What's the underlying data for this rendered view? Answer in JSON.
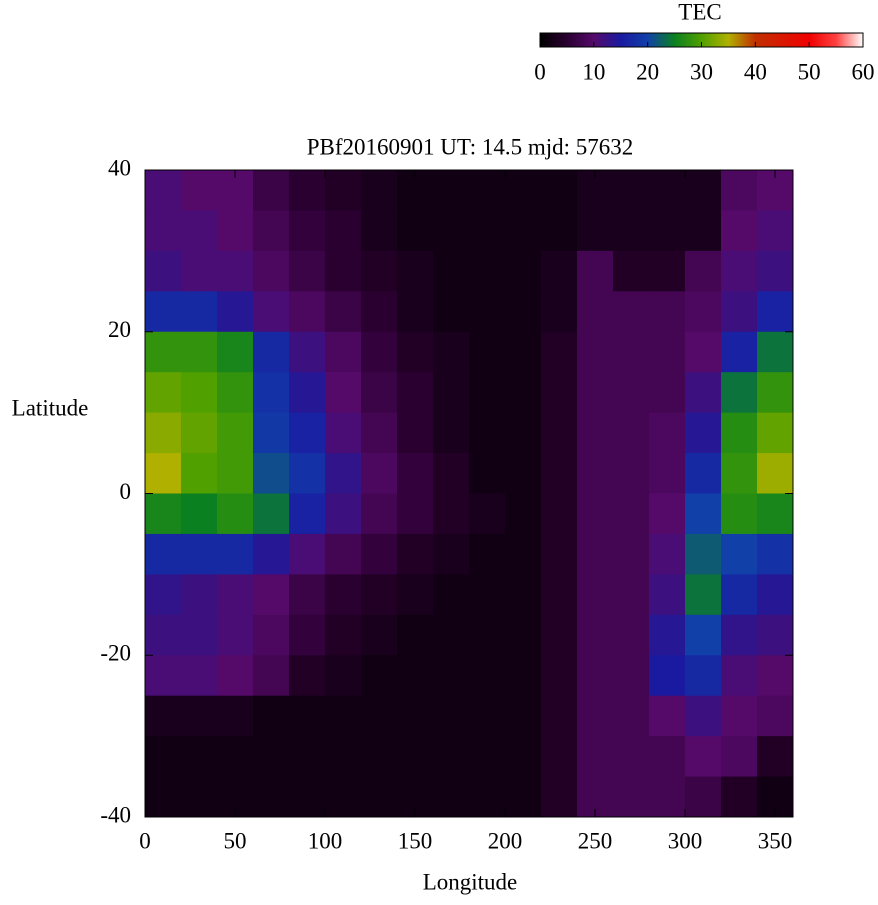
{
  "chart_data": {
    "type": "heatmap",
    "title": "PBf20160901  UT: 14.5  mjd: 57632",
    "xlabel": "Longitude",
    "ylabel": "Latitude",
    "colorbar_label": "TEC",
    "x": [
      10,
      30,
      50,
      70,
      90,
      110,
      130,
      150,
      170,
      190,
      210,
      230,
      250,
      270,
      290,
      310,
      330,
      350
    ],
    "y": [
      37.5,
      32.5,
      27.5,
      22.5,
      17.5,
      12.5,
      7.5,
      2.5,
      -2.5,
      -7.5,
      -12.5,
      -17.5,
      -22.5,
      -27.5,
      -32.5,
      -37.5
    ],
    "values": [
      [
        11,
        10,
        10,
        7,
        5,
        4,
        3,
        2,
        2,
        2,
        2,
        2,
        3,
        3,
        3,
        3,
        9,
        10
      ],
      [
        11,
        11,
        10,
        8,
        6,
        5,
        3,
        2,
        2,
        2,
        2,
        2,
        3,
        3,
        3,
        3,
        10,
        11
      ],
      [
        12,
        11,
        11,
        9,
        7,
        5,
        4,
        3,
        2,
        2,
        2,
        3,
        8,
        4,
        4,
        8,
        11,
        12
      ],
      [
        17,
        17,
        14,
        11,
        9,
        7,
        5,
        3,
        2,
        2,
        2,
        3,
        8,
        8,
        8,
        9,
        12,
        16
      ],
      [
        28,
        28,
        26,
        17,
        12,
        9,
        6,
        4,
        3,
        2,
        2,
        4,
        8,
        8,
        8,
        10,
        16,
        24
      ],
      [
        31,
        30,
        28,
        18,
        14,
        10,
        7,
        5,
        3,
        2,
        2,
        4,
        8,
        8,
        8,
        12,
        24,
        28
      ],
      [
        33,
        31,
        29,
        19,
        16,
        11,
        8,
        5,
        3,
        2,
        2,
        4,
        8,
        8,
        9,
        14,
        27,
        31
      ],
      [
        35,
        30,
        29,
        21,
        18,
        13,
        9,
        6,
        4,
        2,
        2,
        4,
        8,
        8,
        9,
        17,
        28,
        34
      ],
      [
        26,
        25,
        27,
        24,
        16,
        12,
        8,
        6,
        4,
        3,
        2,
        4,
        8,
        8,
        10,
        20,
        27,
        26
      ],
      [
        17,
        17,
        17,
        14,
        11,
        8,
        6,
        4,
        3,
        2,
        2,
        4,
        8,
        8,
        11,
        22,
        20,
        18
      ],
      [
        13,
        12,
        11,
        10,
        7,
        5,
        4,
        3,
        2,
        2,
        2,
        4,
        8,
        8,
        12,
        24,
        17,
        14
      ],
      [
        12,
        12,
        11,
        9,
        6,
        4,
        3,
        2,
        2,
        2,
        2,
        4,
        8,
        8,
        14,
        20,
        13,
        12
      ],
      [
        11,
        11,
        10,
        8,
        4,
        3,
        2,
        2,
        2,
        2,
        2,
        4,
        8,
        8,
        15,
        17,
        11,
        10
      ],
      [
        3,
        3,
        3,
        2,
        2,
        2,
        2,
        2,
        2,
        2,
        2,
        4,
        8,
        8,
        10,
        12,
        10,
        9
      ],
      [
        2,
        2,
        2,
        2,
        2,
        2,
        2,
        2,
        2,
        2,
        2,
        4,
        8,
        8,
        8,
        10,
        9,
        4
      ],
      [
        2,
        2,
        2,
        2,
        2,
        2,
        2,
        2,
        2,
        2,
        2,
        4,
        8,
        8,
        8,
        7,
        4,
        2
      ]
    ],
    "xlim": [
      0,
      360
    ],
    "xticks": [
      0,
      50,
      100,
      150,
      200,
      250,
      300,
      350
    ],
    "ylim": [
      -40,
      40
    ],
    "yticks": [
      -40,
      -20,
      0,
      20,
      40
    ],
    "clim": [
      0,
      60
    ],
    "cticks": [
      0,
      10,
      20,
      30,
      40,
      50,
      60
    ],
    "colormap": [
      [
        0,
        "#000000"
      ],
      [
        5,
        "#2a0030"
      ],
      [
        10,
        "#550a6a"
      ],
      [
        15,
        "#1a1aa0"
      ],
      [
        20,
        "#1040a8"
      ],
      [
        25,
        "#0a8020"
      ],
      [
        30,
        "#50a000"
      ],
      [
        35,
        "#b0b000"
      ],
      [
        40,
        "#c03000"
      ],
      [
        50,
        "#f00000"
      ],
      [
        55,
        "#ff4040"
      ],
      [
        60,
        "#ffffff"
      ]
    ]
  }
}
